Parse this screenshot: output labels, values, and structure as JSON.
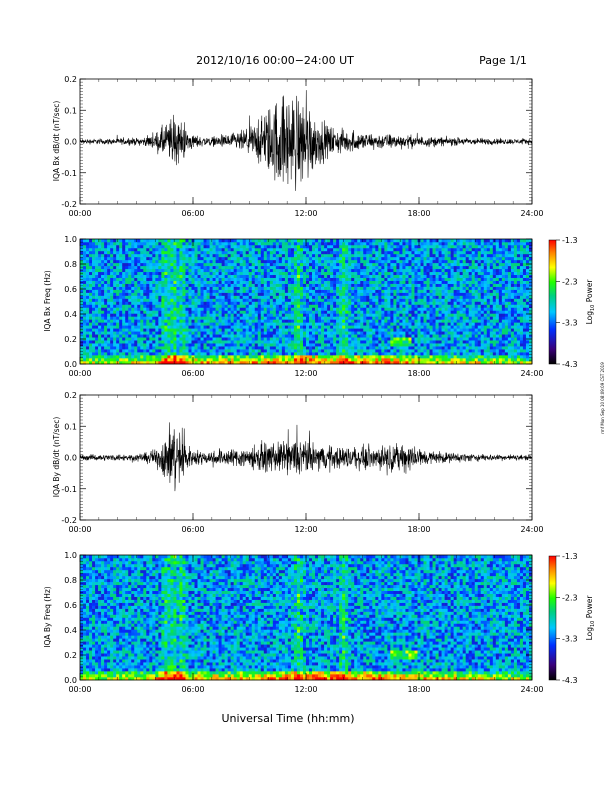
{
  "header": {
    "title": "2012/10/16  00:00−24:00 UT",
    "page": "Page 1/1"
  },
  "side_note": "rmf Mon Sep 10 08:09:09 CST 2019",
  "x_axis": {
    "title": "Universal Time (hh:mm)",
    "ticks": [
      "00:00",
      "06:00",
      "12:00",
      "18:00",
      "24:00"
    ],
    "range_hours": [
      0,
      24
    ]
  },
  "colorbar": {
    "label": "Log10 Power",
    "range": [
      -4.3,
      -1.3
    ],
    "ticks": [
      "-1.3",
      "-2.3",
      "-3.3",
      "-4.3"
    ],
    "colors": [
      "#000000",
      "#3a007a",
      "#0030ff",
      "#00c8ff",
      "#00d080",
      "#20ff00",
      "#ffff00",
      "#ff8000",
      "#ff0000"
    ]
  },
  "chart_data": [
    {
      "type": "line",
      "ylabel": "IQA Bx dB/dt (nT/sec)",
      "ylim": [
        -0.2,
        0.2
      ],
      "yticks": [
        "0.2",
        "0.1",
        "0.0",
        "-0.1",
        "-0.2"
      ],
      "envelope_x_hours": [
        0,
        1,
        2,
        3,
        3.5,
        4,
        4.4,
        4.7,
        5,
        5.3,
        5.7,
        6,
        6.5,
        7,
        7.5,
        8,
        8.5,
        9,
        9.5,
        10,
        10.5,
        11,
        11.5,
        12,
        12.5,
        13,
        13.5,
        14,
        14.5,
        15,
        16,
        17,
        18,
        19,
        20,
        21,
        22,
        23,
        24
      ],
      "envelope_amplitude": [
        0.012,
        0.012,
        0.014,
        0.016,
        0.02,
        0.035,
        0.07,
        0.09,
        0.12,
        0.09,
        0.06,
        0.03,
        0.022,
        0.02,
        0.025,
        0.035,
        0.045,
        0.06,
        0.1,
        0.15,
        0.2,
        0.21,
        0.21,
        0.2,
        0.12,
        0.08,
        0.06,
        0.05,
        0.045,
        0.04,
        0.035,
        0.03,
        0.025,
        0.02,
        0.018,
        0.015,
        0.014,
        0.012,
        0.012
      ]
    },
    {
      "type": "heatmap",
      "ylabel": "IQA Bx Freq (Hz)",
      "ylim": [
        0,
        1.0
      ],
      "yticks": [
        "1.0",
        "0.8",
        "0.6",
        "0.4",
        "0.2",
        "0.0"
      ],
      "colorbar_range": [
        -4.3,
        -1.3
      ],
      "bright_bands_hours": [
        4.6,
        5.0,
        5.4,
        11.6,
        14.0
      ],
      "patch": {
        "start_hours": 16.5,
        "end_hours": 17.6,
        "freq_hz": 0.18
      }
    },
    {
      "type": "line",
      "ylabel": "IQA By dB/dt (nT/sec)",
      "ylim": [
        -0.2,
        0.2
      ],
      "yticks": [
        "0.2",
        "0.1",
        "0.0",
        "-0.1",
        "-0.2"
      ],
      "envelope_x_hours": [
        0,
        1,
        2,
        3,
        3.5,
        4,
        4.4,
        4.7,
        5,
        5.3,
        5.7,
        6,
        6.5,
        7,
        7.5,
        8,
        8.5,
        9,
        9.5,
        10,
        10.5,
        11,
        11.5,
        12,
        12.5,
        13,
        13.5,
        14,
        14.5,
        15,
        16,
        17,
        17.5,
        18,
        19,
        20,
        21,
        22,
        23,
        24
      ],
      "envelope_amplitude": [
        0.012,
        0.013,
        0.015,
        0.016,
        0.02,
        0.04,
        0.08,
        0.13,
        0.18,
        0.12,
        0.06,
        0.035,
        0.03,
        0.03,
        0.035,
        0.04,
        0.045,
        0.05,
        0.06,
        0.06,
        0.065,
        0.07,
        0.1,
        0.07,
        0.06,
        0.055,
        0.05,
        0.05,
        0.05,
        0.05,
        0.05,
        0.06,
        0.07,
        0.04,
        0.025,
        0.02,
        0.016,
        0.014,
        0.012,
        0.012
      ]
    },
    {
      "type": "heatmap",
      "ylabel": "IQA By Freq (Hz)",
      "ylim": [
        0,
        1.0
      ],
      "yticks": [
        "1.0",
        "0.8",
        "0.6",
        "0.4",
        "0.2",
        "0.0"
      ],
      "colorbar_range": [
        -4.3,
        -1.3
      ],
      "bright_bands_hours": [
        4.6,
        5.0,
        5.4,
        11.6,
        14.0
      ],
      "patch": {
        "start_hours": 16.5,
        "end_hours": 18.0,
        "freq_hz": 0.2
      }
    }
  ]
}
